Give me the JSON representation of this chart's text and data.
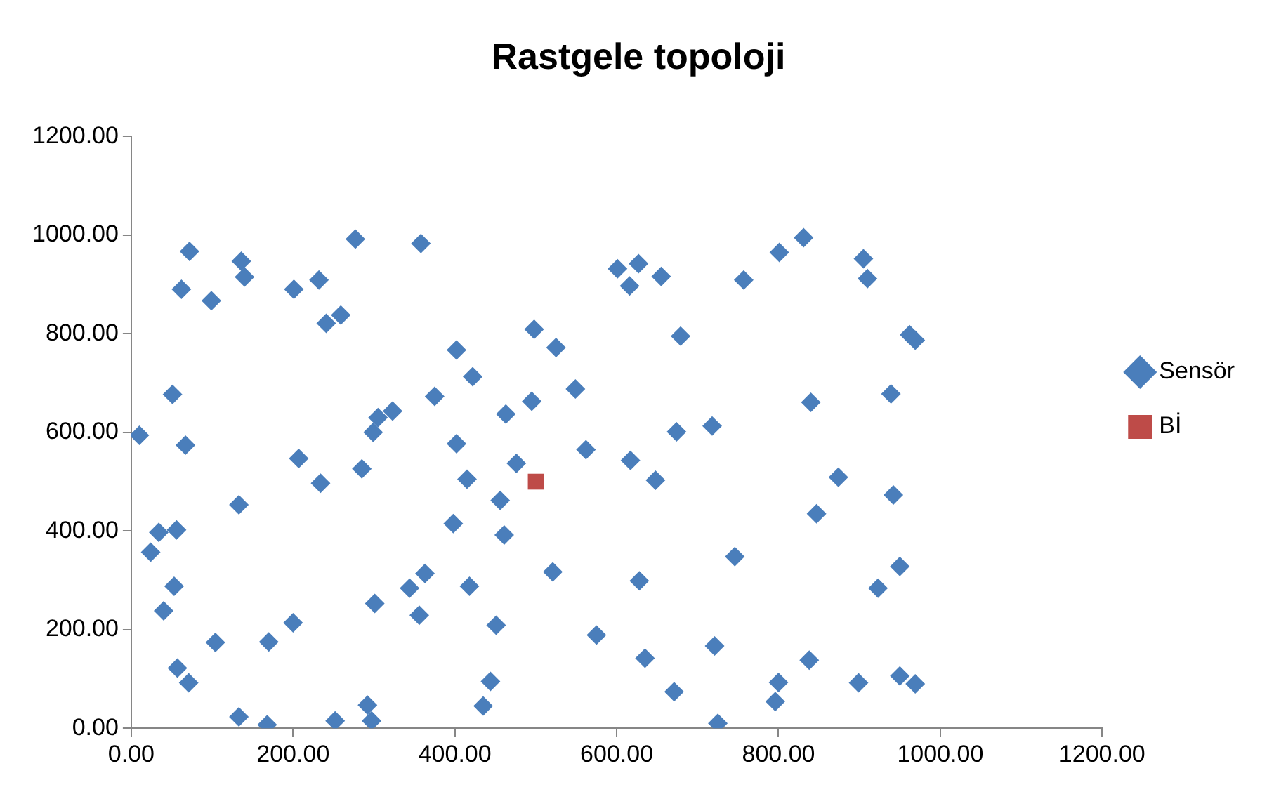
{
  "chart_data": {
    "type": "scatter",
    "title": "Rastgele topoloji",
    "legend": "right",
    "grid": false,
    "xlim": [
      0,
      1200
    ],
    "xticks": [
      {
        "value": 0,
        "label": "0.00"
      },
      {
        "value": 200,
        "label": "200.00"
      },
      {
        "value": 400,
        "label": "400.00"
      },
      {
        "value": 600,
        "label": "600.00"
      },
      {
        "value": 800,
        "label": "800.00"
      },
      {
        "value": 1000,
        "label": "1000.00"
      },
      {
        "value": 1200,
        "label": "1200.00"
      }
    ],
    "ylim": [
      0,
      1200
    ],
    "yticks": [
      {
        "value": 0,
        "label": "0.00"
      },
      {
        "value": 200,
        "label": "200.00"
      },
      {
        "value": 400,
        "label": "400.00"
      },
      {
        "value": 600,
        "label": "600.00"
      },
      {
        "value": 800,
        "label": "800.00"
      },
      {
        "value": 1000,
        "label": "1000.00"
      },
      {
        "value": 1200,
        "label": "1200.00"
      }
    ],
    "series": [
      {
        "name": "Sensör",
        "color": "#4a7ebb",
        "marker": "diamond",
        "x": [
          72,
          136,
          140,
          62,
          99,
          277,
          358,
          201,
          232,
          241,
          259,
          498,
          525,
          402,
          422,
          375,
          51,
          549,
          495,
          463,
          305,
          323,
          299,
          10,
          67,
          402,
          562,
          476,
          207,
          285,
          415,
          234,
          456,
          133,
          831,
          801,
          601,
          627,
          655,
          616,
          757,
          905,
          910,
          679,
          962,
          969,
          840,
          939,
          674,
          718,
          617,
          648,
          874,
          942,
          847,
          746,
          628,
          950,
          923,
          575,
          635,
          721,
          671,
          725,
          800,
          796,
          838,
          899,
          950,
          969,
          398,
          461,
          34,
          56,
          24,
          521,
          53,
          363,
          344,
          418,
          40,
          301,
          356,
          200,
          104,
          170,
          451,
          57,
          71,
          444,
          435,
          133,
          168,
          252,
          292,
          297
        ],
        "values": [
          967,
          947,
          915,
          890,
          867,
          992,
          983,
          890,
          909,
          821,
          838,
          809,
          772,
          767,
          713,
          673,
          677,
          688,
          663,
          637,
          630,
          643,
          600,
          594,
          574,
          577,
          565,
          537,
          547,
          526,
          505,
          497,
          462,
          453,
          995,
          965,
          932,
          942,
          916,
          897,
          909,
          952,
          912,
          795,
          798,
          787,
          661,
          678,
          601,
          613,
          543,
          503,
          509,
          473,
          435,
          348,
          299,
          328,
          284,
          189,
          142,
          167,
          74,
          10,
          93,
          54,
          138,
          92,
          106,
          90,
          415,
          392,
          397,
          402,
          357,
          317,
          288,
          314,
          284,
          288,
          238,
          253,
          229,
          214,
          174,
          175,
          209,
          122,
          92,
          95,
          45,
          23,
          7,
          15,
          47,
          15
        ]
      },
      {
        "name": "Bİ",
        "color": "#be4b48",
        "marker": "square",
        "x": [
          500
        ],
        "values": [
          500
        ]
      }
    ]
  }
}
